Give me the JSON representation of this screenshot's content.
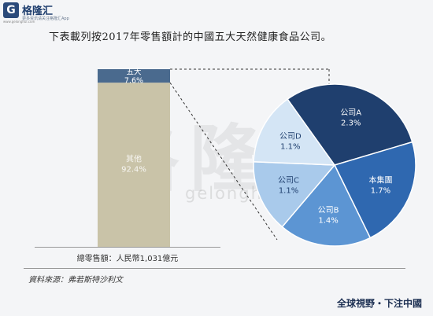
{
  "brand": {
    "logo_letter": "G",
    "name": "格隆汇",
    "tagline": "更多资讯请关注格隆汇App",
    "url": "www.gelonghui.com"
  },
  "heading": "下表載列按2017年零售額計的中國五大天然健康食品公司。",
  "watermark": {
    "cn": "格隆汇",
    "en": "gelonghui.com"
  },
  "chart_data": [
    {
      "type": "bar",
      "stacked": true,
      "categories": [
        "總零售額"
      ],
      "series": [
        {
          "name": "其他",
          "label": "其他",
          "value_label": "92.4%",
          "values": [
            92.4
          ],
          "color": "#c9c3a8"
        },
        {
          "name": "五大",
          "label": "五大",
          "value_label": "7.6%",
          "values": [
            7.6
          ],
          "color": "#4a6a8e"
        }
      ],
      "ylim": [
        0,
        100
      ],
      "total_label": "總零售額：人民幣1,031億元"
    },
    {
      "type": "pie",
      "slices": [
        {
          "name": "公司A",
          "value": 2.3,
          "value_label": "2.3%",
          "color": "#1f3f6e"
        },
        {
          "name": "本集團",
          "value": 1.7,
          "value_label": "1.7%",
          "color": "#2f68b0"
        },
        {
          "name": "公司B",
          "value": 1.4,
          "value_label": "1.4%",
          "color": "#5c95d3"
        },
        {
          "name": "公司C",
          "value": 1.1,
          "value_label": "1.1%",
          "color": "#a9caeb"
        },
        {
          "name": "公司D",
          "value": 1.1,
          "value_label": "1.1%",
          "color": "#d4e5f5"
        }
      ],
      "total": 7.6
    }
  ],
  "source": "資料來源：弗若斯特沙利文",
  "footer": "全球視野・下注中國"
}
